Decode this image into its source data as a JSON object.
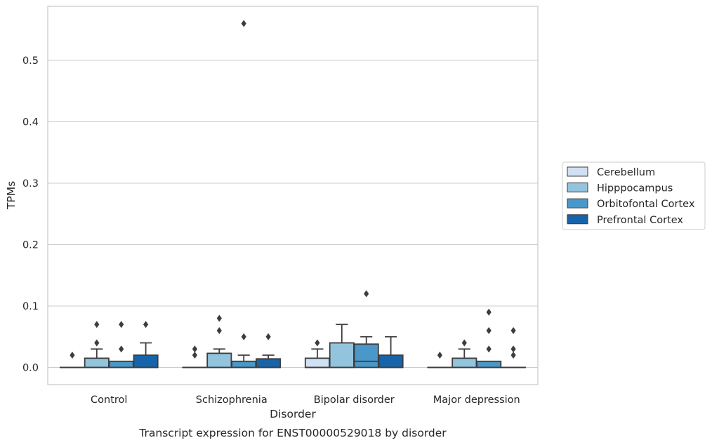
{
  "caption": "Transcript expression for ENST00000529018 by disorder",
  "colors": {
    "Cerebellum": "#cfe1f2",
    "Hipppocampus": "#93c4de",
    "Orbitofontal Cortex": "#4a98c9",
    "Prefrontal Cortex": "#1764ab",
    "box_edge": "#3d3d3d",
    "grid": "#cccccc",
    "frame": "#cccccc"
  },
  "chart_data": {
    "type": "box",
    "xlabel": "Disorder",
    "ylabel": "TPMs",
    "ylim": [
      -0.028,
      0.588
    ],
    "yticks": [
      0.0,
      0.1,
      0.2,
      0.3,
      0.4,
      0.5
    ],
    "ytick_labels": [
      "0.0",
      "0.1",
      "0.2",
      "0.3",
      "0.4",
      "0.5"
    ],
    "grid": "horizontal",
    "legend_position": "right",
    "categories": [
      "Control",
      "Schizophrenia",
      "Bipolar disorder",
      "Major depression"
    ],
    "series": [
      {
        "name": "Cerebellum",
        "boxes": [
          {
            "q1": 0,
            "median": 0,
            "q3": 0,
            "whisker_low": 0,
            "whisker_high": 0,
            "outliers": [
              0.02
            ]
          },
          {
            "q1": 0,
            "median": 0,
            "q3": 0,
            "whisker_low": 0,
            "whisker_high": 0,
            "outliers": [
              0.02,
              0.03
            ]
          },
          {
            "q1": 0,
            "median": 0,
            "q3": 0.015,
            "whisker_low": 0,
            "whisker_high": 0.03,
            "outliers": [
              0.04
            ]
          },
          {
            "q1": 0,
            "median": 0,
            "q3": 0,
            "whisker_low": 0,
            "whisker_high": 0,
            "outliers": [
              0.02
            ]
          }
        ]
      },
      {
        "name": "Hipppocampus",
        "boxes": [
          {
            "q1": 0,
            "median": 0,
            "q3": 0.015,
            "whisker_low": 0,
            "whisker_high": 0.03,
            "outliers": [
              0.04,
              0.07
            ]
          },
          {
            "q1": 0,
            "median": 0,
            "q3": 0.023,
            "whisker_low": 0,
            "whisker_high": 0.03,
            "outliers": [
              0.06,
              0.08
            ]
          },
          {
            "q1": 0,
            "median": 0,
            "q3": 0.04,
            "whisker_low": 0,
            "whisker_high": 0.07,
            "outliers": []
          },
          {
            "q1": 0,
            "median": 0,
            "q3": 0.015,
            "whisker_low": 0,
            "whisker_high": 0.03,
            "outliers": [
              0.04
            ]
          }
        ]
      },
      {
        "name": "Orbitofontal Cortex",
        "boxes": [
          {
            "q1": 0,
            "median": 0,
            "q3": 0.01,
            "whisker_low": 0,
            "whisker_high": 0.01,
            "outliers": [
              0.03,
              0.07
            ]
          },
          {
            "q1": 0,
            "median": 0,
            "q3": 0.01,
            "whisker_low": 0,
            "whisker_high": 0.02,
            "outliers": [
              0.05,
              0.56
            ]
          },
          {
            "q1": 0,
            "median": 0.01,
            "q3": 0.038,
            "whisker_low": 0,
            "whisker_high": 0.05,
            "outliers": [
              0.12
            ]
          },
          {
            "q1": 0,
            "median": 0,
            "q3": 0.01,
            "whisker_low": 0,
            "whisker_high": 0.01,
            "outliers": [
              0.03,
              0.06,
              0.09
            ]
          }
        ]
      },
      {
        "name": "Prefrontal Cortex",
        "boxes": [
          {
            "q1": 0,
            "median": 0,
            "q3": 0.02,
            "whisker_low": 0,
            "whisker_high": 0.04,
            "outliers": [
              0.07
            ]
          },
          {
            "q1": 0,
            "median": 0,
            "q3": 0.014,
            "whisker_low": 0,
            "whisker_high": 0.02,
            "outliers": [
              0.05
            ]
          },
          {
            "q1": 0,
            "median": 0,
            "q3": 0.02,
            "whisker_low": 0,
            "whisker_high": 0.05,
            "outliers": []
          },
          {
            "q1": 0,
            "median": 0,
            "q3": 0,
            "whisker_low": 0,
            "whisker_high": 0,
            "outliers": [
              0.02,
              0.03,
              0.06
            ]
          }
        ]
      }
    ]
  }
}
